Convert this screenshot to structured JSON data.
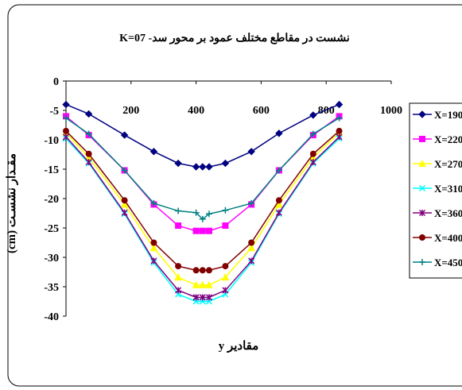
{
  "chart_data": {
    "type": "line",
    "title": "نشست در مقاطع مختلف عمود  بر محور سد- K=07",
    "xlabel": "مقادیر y",
    "ylabel": "مقـدار نشسـت (cm)",
    "xlim": [
      0,
      1000
    ],
    "ylim": [
      -40,
      0
    ],
    "xticks": [
      200,
      400,
      600,
      800,
      1000
    ],
    "yticks": [
      0,
      -5,
      -10,
      -15,
      -20,
      -25,
      -30,
      -35,
      -40
    ],
    "grid": false,
    "legend_position": "right",
    "x": [
      0,
      70,
      180,
      270,
      345,
      400,
      420,
      440,
      490,
      570,
      655,
      760,
      840
    ],
    "series": [
      {
        "name": "X=190",
        "color": "#000080",
        "marker": "diamond",
        "values": [
          -4.0,
          -5.6,
          -9.2,
          -12.0,
          -14.0,
          -14.6,
          -14.6,
          -14.6,
          -14.0,
          -12.0,
          -8.9,
          -5.8,
          -4.0
        ]
      },
      {
        "name": "X=220",
        "color": "#ff00ff",
        "marker": "square",
        "values": [
          -6.0,
          -9.2,
          -15.2,
          -21.0,
          -24.6,
          -25.5,
          -25.5,
          -25.5,
          -24.6,
          -21.0,
          -15.2,
          -9.2,
          -6.0
        ]
      },
      {
        "name": "X=270",
        "color": "#ffff00",
        "marker": "triangle",
        "values": [
          -8.8,
          -13.0,
          -21.0,
          -28.4,
          -33.4,
          -34.7,
          -34.7,
          -34.7,
          -33.4,
          -28.4,
          -21.0,
          -13.0,
          -8.8
        ]
      },
      {
        "name": "X=310",
        "color": "#00ffff",
        "marker": "x",
        "values": [
          -9.8,
          -14.0,
          -22.6,
          -30.9,
          -36.3,
          -37.5,
          -37.5,
          -37.5,
          -36.3,
          -30.9,
          -22.6,
          -14.0,
          -9.8
        ]
      },
      {
        "name": "X=360",
        "color": "#800080",
        "marker": "star",
        "values": [
          -9.5,
          -13.8,
          -22.4,
          -30.6,
          -35.6,
          -36.8,
          -36.8,
          -36.8,
          -35.6,
          -30.6,
          -22.4,
          -13.8,
          -9.5
        ]
      },
      {
        "name": "X=400",
        "color": "#800000",
        "marker": "circle",
        "values": [
          -8.5,
          -12.4,
          -20.3,
          -27.5,
          -31.5,
          -32.2,
          -32.2,
          -32.2,
          -31.5,
          -27.5,
          -20.3,
          -12.4,
          -8.5
        ]
      },
      {
        "name": "X=450",
        "color": "#008080",
        "marker": "plus",
        "values": [
          -6.3,
          -9.0,
          -15.2,
          -20.8,
          -22.1,
          -22.4,
          -23.5,
          -22.6,
          -22.0,
          -20.8,
          -15.2,
          -9.0,
          -6.3
        ]
      }
    ]
  }
}
